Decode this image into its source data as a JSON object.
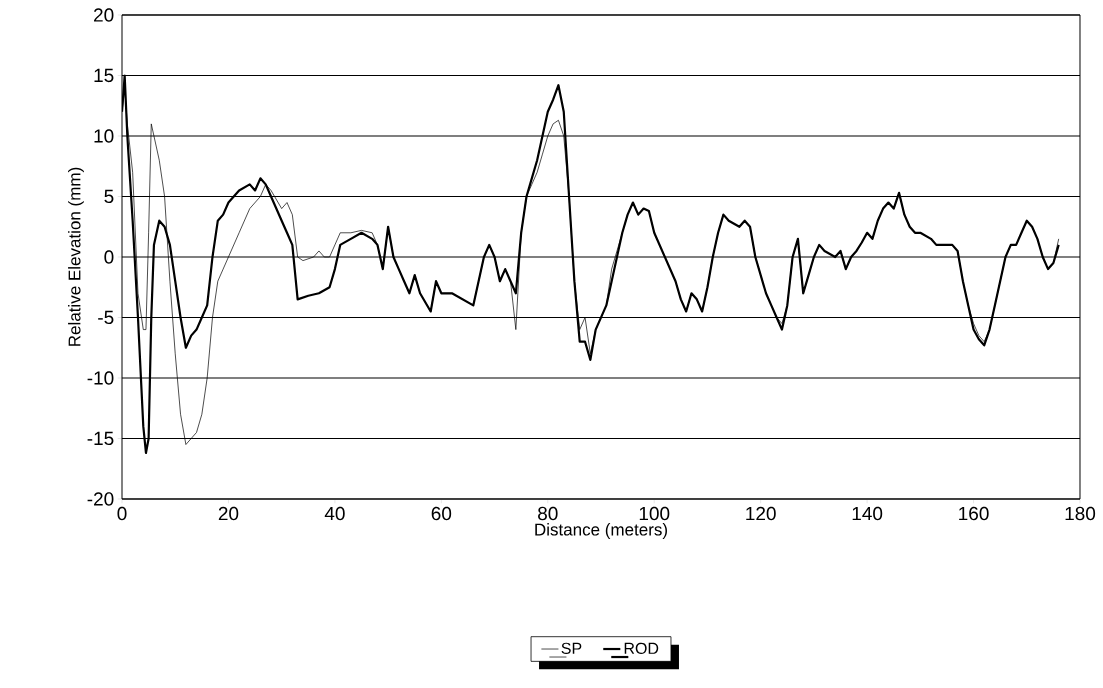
{
  "chart_data": {
    "type": "line",
    "xlabel": "Distance (meters)",
    "ylabel": "Relative Elevation (mm)",
    "xlim": [
      0,
      180
    ],
    "xticks": [
      0,
      20,
      40,
      60,
      80,
      100,
      120,
      140,
      160,
      180
    ],
    "ylim": [
      -20,
      20
    ],
    "yticks": [
      -20,
      -15,
      -10,
      -5,
      0,
      5,
      10,
      15,
      20
    ],
    "grid": "y",
    "legend": "bottom",
    "marker": "none",
    "line_style": "solid",
    "series": [
      {
        "name": "SP",
        "color": "#000000",
        "x": [
          0,
          0.5,
          1,
          2,
          3,
          4,
          4.5,
          5,
          5.5,
          6,
          7,
          8,
          9,
          10,
          11,
          12,
          13,
          14,
          15,
          16,
          17,
          18,
          19,
          20,
          22,
          24,
          26,
          27,
          28,
          30,
          31,
          32,
          33,
          34,
          36,
          37,
          38,
          39,
          40,
          41,
          43,
          45,
          47,
          48,
          49,
          50,
          51,
          52,
          53,
          54,
          55,
          56,
          58,
          59,
          60,
          62,
          64,
          66,
          67,
          68,
          69,
          70,
          71,
          72,
          73,
          74,
          75,
          76,
          77,
          78,
          79,
          80,
          81,
          82,
          83,
          84,
          85,
          86,
          87,
          88,
          89,
          90,
          91,
          92,
          93,
          94,
          95,
          96,
          97,
          98,
          99,
          100,
          102,
          104,
          105,
          106,
          107,
          108,
          109,
          110,
          111,
          112,
          113,
          114,
          116,
          117,
          118,
          119,
          121,
          122,
          123,
          124,
          125,
          126,
          127,
          128,
          129,
          130,
          131,
          132,
          134,
          135,
          136,
          137,
          138,
          139,
          140,
          141,
          142,
          143,
          144,
          145,
          146,
          147,
          148,
          149,
          150,
          152,
          153,
          154,
          156,
          157,
          158,
          159,
          160,
          161,
          162,
          163,
          164,
          165,
          166,
          167,
          168,
          169,
          170,
          171,
          172,
          173,
          174,
          175,
          176
        ],
        "values": [
          12,
          14,
          11,
          7,
          -3,
          -6,
          -6,
          2,
          11,
          10,
          8,
          5,
          -2,
          -8,
          -13,
          -15.5,
          -15,
          -14.5,
          -13,
          -10,
          -5,
          -2,
          -1,
          0,
          2,
          4,
          5,
          6,
          5.5,
          4,
          4.5,
          3.5,
          0,
          -0.3,
          0,
          0.5,
          0,
          0,
          1,
          2,
          2,
          2.2,
          2,
          1,
          -1,
          2.5,
          0,
          -1,
          -2,
          -3,
          -1.5,
          -3,
          -4.5,
          -2,
          -3,
          -3,
          -3.5,
          -4,
          -2,
          0,
          1,
          0,
          -2,
          -1,
          -2,
          -6,
          2,
          5,
          6,
          7,
          8.5,
          10,
          11,
          11.3,
          10,
          5,
          -2,
          -6,
          -5,
          -8,
          -6,
          -5,
          -4,
          -1,
          0.5,
          2,
          3.5,
          4.5,
          3.5,
          4,
          3.8,
          2,
          0,
          -2,
          -3.5,
          -4.5,
          -3,
          -3.5,
          -4.5,
          -2.5,
          0,
          2,
          3.5,
          3,
          2.5,
          3,
          2.5,
          0,
          -3,
          -4,
          -5,
          -5.5,
          -4,
          0,
          1.5,
          -3,
          -1.5,
          0,
          1,
          0.5,
          0,
          0.5,
          -1,
          0,
          0.5,
          1.2,
          2,
          1.5,
          3,
          4,
          4.5,
          4,
          5.3,
          3.5,
          2.5,
          2,
          2,
          1.5,
          1,
          1,
          1,
          0.5,
          -2,
          -4,
          -5.5,
          -6.5,
          -7,
          -6,
          -4,
          -2,
          0,
          1,
          1,
          2,
          3,
          2.5,
          1.5,
          0,
          -1,
          -0.5,
          1.5
        ]
      },
      {
        "name": "ROD",
        "color": "#000000",
        "x": [
          0,
          0.5,
          1,
          2,
          3,
          4,
          4.5,
          5,
          5.5,
          6,
          7,
          8,
          9,
          10,
          11,
          12,
          13,
          14,
          15,
          16,
          17,
          18,
          19,
          20,
          22,
          24,
          25,
          26,
          27,
          28,
          30,
          31,
          32,
          33,
          35,
          37,
          39,
          40,
          41,
          43,
          45,
          47,
          48,
          49,
          50,
          51,
          52,
          53,
          54,
          55,
          56,
          58,
          59,
          60,
          62,
          64,
          66,
          67,
          68,
          69,
          70,
          71,
          72,
          73,
          74,
          75,
          76,
          77,
          78,
          79,
          80,
          81,
          82,
          83,
          84,
          85,
          86,
          87,
          88,
          89,
          90,
          91,
          92,
          93,
          94,
          95,
          96,
          97,
          98,
          99,
          100,
          102,
          104,
          105,
          106,
          107,
          108,
          109,
          110,
          111,
          112,
          113,
          114,
          116,
          117,
          118,
          119,
          121,
          122,
          123,
          124,
          125,
          126,
          127,
          128,
          129,
          130,
          131,
          132,
          134,
          135,
          136,
          137,
          138,
          139,
          140,
          141,
          142,
          143,
          144,
          145,
          146,
          147,
          148,
          149,
          150,
          152,
          153,
          154,
          156,
          157,
          158,
          159,
          160,
          161,
          162,
          163,
          164,
          165,
          166,
          167,
          168,
          169,
          170,
          171,
          172,
          173,
          174,
          175,
          176
        ],
        "values": [
          12,
          15,
          10,
          3,
          -5,
          -14,
          -16.2,
          -15,
          -5,
          1,
          3,
          2.5,
          1,
          -2,
          -5,
          -7.5,
          -6.5,
          -6,
          -5,
          -4,
          0,
          3,
          3.5,
          4.5,
          5.5,
          6,
          5.5,
          6.5,
          6,
          5,
          3,
          2,
          1,
          -3.5,
          -3.2,
          -3,
          -2.5,
          -1,
          1,
          1.5,
          2,
          1.5,
          1,
          -1,
          2.5,
          0,
          -1,
          -2,
          -3,
          -1.5,
          -3,
          -4.5,
          -2,
          -3,
          -3,
          -3.5,
          -4,
          -2,
          0,
          1,
          0,
          -2,
          -1,
          -2,
          -3,
          2,
          5,
          6.5,
          8,
          10,
          12,
          13,
          14.2,
          12,
          5,
          -2,
          -7,
          -7,
          -8.5,
          -6,
          -5,
          -4,
          -2,
          0,
          2,
          3.5,
          4.5,
          3.5,
          4,
          3.8,
          2,
          0,
          -2,
          -3.5,
          -4.5,
          -3,
          -3.5,
          -4.5,
          -2.5,
          0,
          2,
          3.5,
          3,
          2.5,
          3,
          2.5,
          0,
          -3,
          -4,
          -5,
          -6,
          -4,
          0,
          1.5,
          -3,
          -1.5,
          0,
          1,
          0.5,
          0,
          0.5,
          -1,
          0,
          0.5,
          1.2,
          2,
          1.5,
          3,
          4,
          4.5,
          4,
          5.3,
          3.5,
          2.5,
          2,
          2,
          1.5,
          1,
          1,
          1,
          0.5,
          -2,
          -4,
          -6,
          -6.8,
          -7.3,
          -6,
          -4,
          -2,
          0,
          1,
          1,
          2,
          3,
          2.5,
          1.5,
          0,
          -1,
          -0.5,
          1
        ]
      }
    ]
  }
}
